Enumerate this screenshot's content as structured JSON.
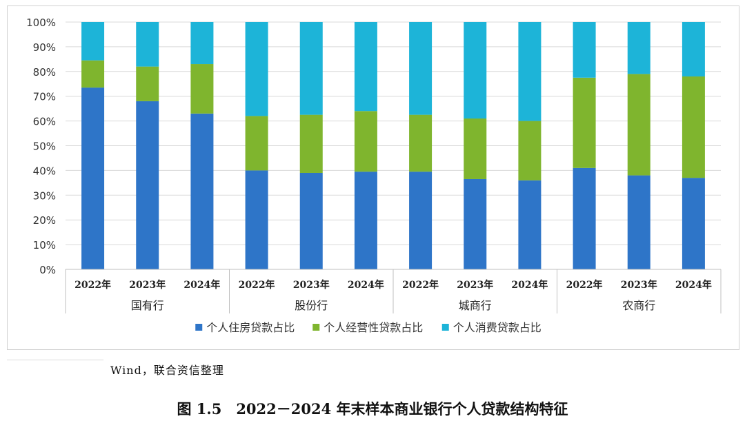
{
  "chart_data": {
    "type": "bar",
    "stacked": true,
    "ylim": [
      0,
      100
    ],
    "yticks": [
      "0%",
      "10%",
      "20%",
      "30%",
      "40%",
      "50%",
      "60%",
      "70%",
      "80%",
      "90%",
      "100%"
    ],
    "categories": [
      "2022年",
      "2023年",
      "2024年",
      "2022年",
      "2023年",
      "2024年",
      "2022年",
      "2023年",
      "2024年",
      "2022年",
      "2023年",
      "2024年"
    ],
    "groups": [
      "国有行",
      "股份行",
      "城商行",
      "农商行"
    ],
    "series": [
      {
        "name": "个人住房贷款占比",
        "color": "#2e75c8",
        "values": [
          73.5,
          68,
          63,
          40,
          39,
          39.5,
          39.5,
          36.5,
          36,
          41,
          38,
          37
        ]
      },
      {
        "name": "个人经营性贷款占比",
        "color": "#7fb52e",
        "values": [
          11,
          14,
          20,
          22,
          23.5,
          24.5,
          23,
          24.5,
          24,
          36.5,
          41,
          41
        ]
      },
      {
        "name": "个人消费贷款占比",
        "color": "#1db4d8",
        "values": [
          15.5,
          18,
          17,
          38,
          37.5,
          36,
          37.5,
          39,
          40,
          22.5,
          21,
          22
        ]
      }
    ],
    "legend_position": "bottom",
    "grid": true
  },
  "source_note": "Wind，联合资信整理",
  "caption": "图 1.5　2022－2024 年末样本商业银行个人贷款结构特征"
}
